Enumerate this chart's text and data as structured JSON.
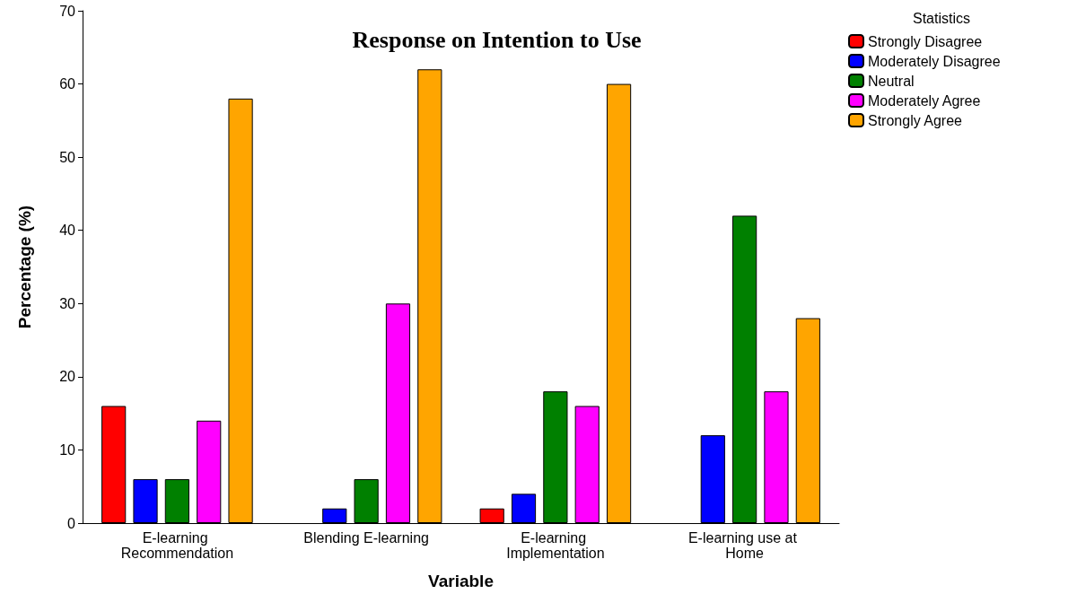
{
  "chart_data": {
    "type": "bar",
    "title": "Response on Intention to Use",
    "xlabel": "Variable",
    "ylabel": "Percentage (%)",
    "legend_title": "Statistics",
    "categories": [
      "E-learning Recommendation",
      "Blending E-learning",
      "E-learning Implementation",
      "E-learning use at Home"
    ],
    "series": [
      {
        "name": "Strongly Disagree",
        "color": "#ff0000",
        "values": [
          16,
          null,
          2,
          null
        ]
      },
      {
        "name": "Moderately Disagree",
        "color": "#0000ff",
        "values": [
          6,
          2,
          4,
          12
        ]
      },
      {
        "name": "Neutral",
        "color": "#008000",
        "values": [
          6,
          6,
          18,
          42
        ]
      },
      {
        "name": "Moderately Agree",
        "color": "#ff00ff",
        "values": [
          14,
          30,
          16,
          18
        ]
      },
      {
        "name": "Strongly Agree",
        "color": "#ffa500",
        "values": [
          58,
          62,
          60,
          28
        ]
      }
    ],
    "ylim": [
      0,
      70
    ],
    "yticks": [
      0,
      10,
      20,
      30,
      40,
      50,
      60,
      70
    ],
    "grid": false,
    "legend": "top right"
  }
}
